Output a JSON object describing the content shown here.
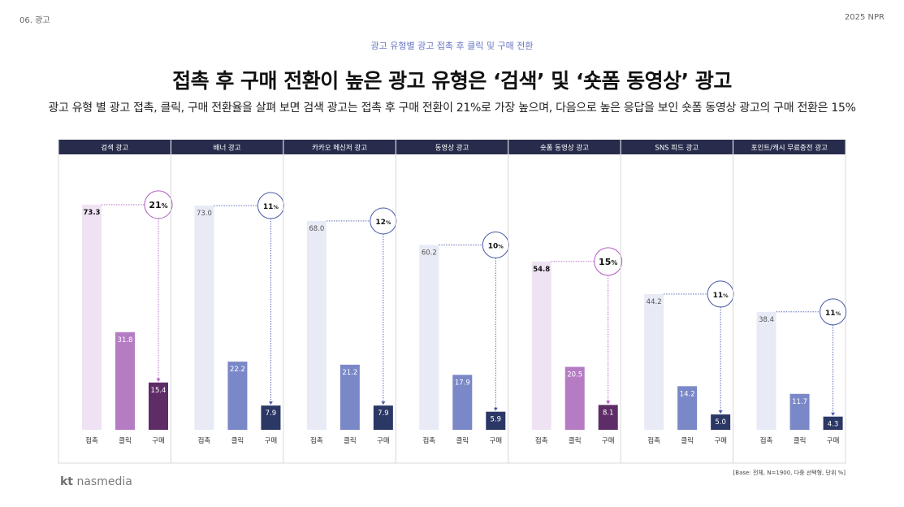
{
  "header": {
    "section": "06. 광고",
    "report": "2025 NPR"
  },
  "kicker": "광고 유형별 광고 접촉 후 클릭 및 구매 전환",
  "title": "접촉 후 구매 전환이 높은 광고 유형은 ‘검색’ 및 ‘숏폼 동영상’ 광고",
  "subtitle": "광고 유형 별 광고 접촉, 클릭, 구매 전환율을 살펴 보면 검색 광고는 접촉 후 구매 전환이 21%로 가장 높으며, 다음으로 높은 응답을 보인 숏폼 동영상 광고의 구매 전환은 15%",
  "footnote": "[Base: 전체, N=1900, 다중 선택형, 단위 %]",
  "logo": {
    "kt": "kt",
    "name": "nasmedia"
  },
  "colors": {
    "header_bg": "#272c4c",
    "highlight": [
      "#efe3f3",
      "#b57cc4",
      "#5e2d67"
    ],
    "normal": [
      "#e8ebf6",
      "#7b88c8",
      "#2b3865"
    ],
    "circle_highlight": "#b15bc1",
    "circle_normal": "#4a5aa8"
  },
  "chart_data": {
    "type": "bar",
    "title": "광고 유형별 광고 접촉 후 클릭 및 구매 전환",
    "unit": "%",
    "ylim": [
      0,
      80
    ],
    "categories": [
      "접촉",
      "클릭",
      "구매"
    ],
    "groups": [
      {
        "name": "검색 광고",
        "values": [
          73.3,
          31.8,
          15.4
        ],
        "conversion": "21",
        "highlight": true
      },
      {
        "name": "배너 광고",
        "values": [
          73.0,
          22.2,
          7.9
        ],
        "conversion": "11",
        "highlight": false
      },
      {
        "name": "카카오 메신저 광고",
        "values": [
          68.0,
          21.2,
          7.9
        ],
        "conversion": "12",
        "highlight": false
      },
      {
        "name": "동영상 광고",
        "values": [
          60.2,
          17.9,
          5.9
        ],
        "conversion": "10",
        "highlight": false
      },
      {
        "name": "숏폼 동영상 광고",
        "values": [
          54.8,
          20.5,
          8.1
        ],
        "conversion": "15",
        "highlight": true
      },
      {
        "name": "SNS 피드 광고",
        "values": [
          44.2,
          14.2,
          5.0
        ],
        "conversion": "11",
        "highlight": false
      },
      {
        "name": "포인트/캐시 무료충전 광고",
        "values": [
          38.4,
          11.7,
          4.3
        ],
        "conversion": "11",
        "highlight": false
      }
    ],
    "percent_sign": "%"
  }
}
